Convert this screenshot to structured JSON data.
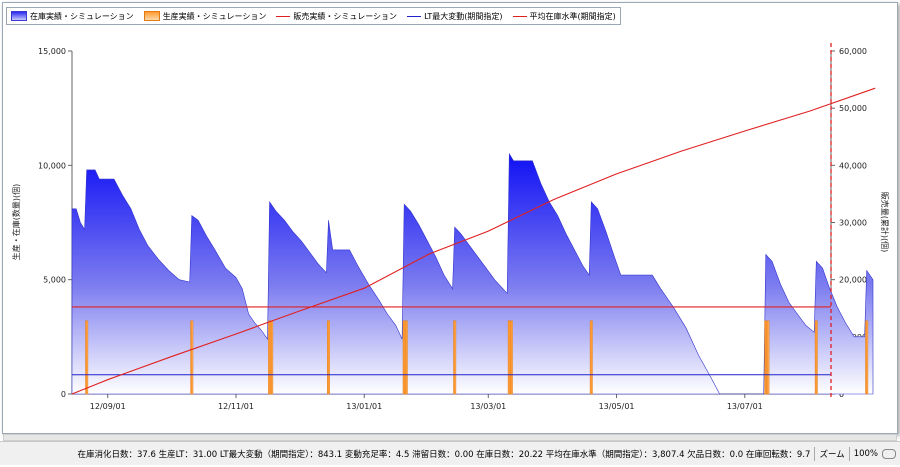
{
  "legend": {
    "items": [
      {
        "label": "在庫実績・シミュレーション",
        "color": "#3a3ae6",
        "kind": "area"
      },
      {
        "label": "生産実績・シミュレーション",
        "color": "#ff9a33",
        "kind": "bar"
      },
      {
        "label": "販売実績・シミュレーション",
        "color": "#e02020",
        "kind": "line"
      },
      {
        "label": "LT最大変動(期間指定)",
        "color": "#2222cc",
        "kind": "line"
      },
      {
        "label": "平均在庫水準(期間指定)",
        "color": "#e02020",
        "kind": "line"
      }
    ]
  },
  "status": {
    "summary": "在庫消化日数：37.6 生産LT：31.00 LT最大変動（期間指定）：843.1 変動充足率：4.5 滞留日数：0.00 在庫日数：20.22 平均在庫水準（期間指定）：3,807.4 欠品日数：0.0 在庫回転数：9.7",
    "zoom_label": "ズーム",
    "zoom_value": "100%"
  },
  "chart_data": {
    "type": "area",
    "ylabel": "生産・在庫(数量)(個)",
    "y2label": "販売量(累計)(個)",
    "ylim": [
      0,
      15000
    ],
    "y2lim": [
      0,
      60000
    ],
    "yticks": [
      "0",
      "5,000",
      "10,000",
      "15,000"
    ],
    "y2ticks": [
      "0",
      "10,000",
      "20,000",
      "30,000",
      "40,000",
      "50,000",
      "60,000"
    ],
    "xticks": [
      "12/09/01",
      "12/11/01",
      "13/01/01",
      "13/03/01",
      "13/05/01",
      "13/07/01"
    ],
    "x_start": "2012-08-15",
    "x_end": "2013-08-11",
    "inventory": [
      [
        "2012-08-15",
        8100
      ],
      [
        "2012-08-17",
        8100
      ],
      [
        "2012-08-19",
        7500
      ],
      [
        "2012-08-21",
        7200
      ],
      [
        "2012-08-22",
        9800
      ],
      [
        "2012-08-26",
        9800
      ],
      [
        "2012-08-28",
        9400
      ],
      [
        "2012-09-04",
        9400
      ],
      [
        "2012-09-08",
        8700
      ],
      [
        "2012-09-12",
        8100
      ],
      [
        "2012-09-16",
        7200
      ],
      [
        "2012-09-20",
        6500
      ],
      [
        "2012-09-25",
        5900
      ],
      [
        "2012-09-30",
        5400
      ],
      [
        "2012-10-05",
        5000
      ],
      [
        "2012-10-10",
        4900
      ],
      [
        "2012-10-11",
        7800
      ],
      [
        "2012-10-14",
        7600
      ],
      [
        "2012-10-18",
        6900
      ],
      [
        "2012-10-22",
        6300
      ],
      [
        "2012-10-27",
        5500
      ],
      [
        "2012-11-01",
        5100
      ],
      [
        "2012-11-04",
        4600
      ],
      [
        "2012-11-07",
        3500
      ],
      [
        "2012-11-10",
        3100
      ],
      [
        "2012-11-13",
        2800
      ],
      [
        "2012-11-16",
        2400
      ],
      [
        "2012-11-17",
        8400
      ],
      [
        "2012-11-20",
        8000
      ],
      [
        "2012-11-24",
        7600
      ],
      [
        "2012-11-28",
        7100
      ],
      [
        "2012-12-02",
        6700
      ],
      [
        "2012-12-06",
        6200
      ],
      [
        "2012-12-10",
        5700
      ],
      [
        "2012-12-14",
        5300
      ],
      [
        "2012-12-15",
        7600
      ],
      [
        "2012-12-17",
        6300
      ],
      [
        "2012-12-25",
        6300
      ],
      [
        "2012-12-29",
        5600
      ],
      [
        "2013-01-03",
        4800
      ],
      [
        "2013-01-08",
        4100
      ],
      [
        "2013-01-12",
        3500
      ],
      [
        "2013-01-16",
        3000
      ],
      [
        "2013-01-19",
        2400
      ],
      [
        "2013-01-20",
        8300
      ],
      [
        "2013-01-23",
        8000
      ],
      [
        "2013-01-27",
        7400
      ],
      [
        "2013-01-31",
        6700
      ],
      [
        "2013-02-04",
        6000
      ],
      [
        "2013-02-08",
        5200
      ],
      [
        "2013-02-12",
        4600
      ],
      [
        "2013-02-13",
        7300
      ],
      [
        "2013-02-16",
        7000
      ],
      [
        "2013-02-20",
        6500
      ],
      [
        "2013-02-24",
        6000
      ],
      [
        "2013-02-28",
        5500
      ],
      [
        "2013-03-04",
        5000
      ],
      [
        "2013-03-08",
        4600
      ],
      [
        "2013-03-10",
        4400
      ],
      [
        "2013-03-11",
        10500
      ],
      [
        "2013-03-13",
        10200
      ],
      [
        "2013-03-22",
        10200
      ],
      [
        "2013-03-26",
        9200
      ],
      [
        "2013-03-30",
        8400
      ],
      [
        "2013-04-03",
        7800
      ],
      [
        "2013-04-07",
        7000
      ],
      [
        "2013-04-11",
        6300
      ],
      [
        "2013-04-15",
        5600
      ],
      [
        "2013-04-18",
        5200
      ],
      [
        "2013-04-19",
        8400
      ],
      [
        "2013-04-22",
        8100
      ],
      [
        "2013-04-26",
        7100
      ],
      [
        "2013-04-30",
        6000
      ],
      [
        "2013-05-03",
        5200
      ],
      [
        "2013-05-18",
        5200
      ],
      [
        "2013-05-22",
        4600
      ],
      [
        "2013-05-28",
        3800
      ],
      [
        "2013-06-03",
        2900
      ],
      [
        "2013-06-09",
        1700
      ],
      [
        "2013-06-15",
        700
      ],
      [
        "2013-06-19",
        0
      ],
      [
        "2013-07-10",
        0
      ],
      [
        "2013-07-11",
        6100
      ],
      [
        "2013-07-14",
        5800
      ],
      [
        "2013-07-18",
        4800
      ],
      [
        "2013-07-22",
        4000
      ],
      [
        "2013-07-26",
        3500
      ],
      [
        "2013-07-30",
        3000
      ],
      [
        "2013-08-03",
        2700
      ],
      [
        "2013-08-04",
        5800
      ],
      [
        "2013-08-07",
        5500
      ],
      [
        "2013-08-10",
        4700
      ],
      [
        "2013-08-14",
        3800
      ],
      [
        "2013-08-18",
        3100
      ],
      [
        "2013-08-22",
        2500
      ],
      [
        "2013-08-27",
        2500
      ],
      [
        "2013-08-28",
        5400
      ],
      [
        "2013-08-31",
        5000
      ]
    ],
    "production": [
      [
        "2012-08-22",
        3200
      ],
      [
        "2012-10-11",
        3200
      ],
      [
        "2012-11-17",
        3200
      ],
      [
        "2012-11-18",
        3200
      ],
      [
        "2012-12-15",
        3200
      ],
      [
        "2013-01-20",
        3200
      ],
      [
        "2013-01-21",
        3200
      ],
      [
        "2013-02-13",
        3200
      ],
      [
        "2013-03-11",
        3200
      ],
      [
        "2013-03-12",
        3200
      ],
      [
        "2013-04-19",
        3200
      ],
      [
        "2013-07-11",
        3200
      ],
      [
        "2013-07-12",
        3200
      ],
      [
        "2013-08-04",
        3200
      ],
      [
        "2013-08-28",
        3200
      ]
    ],
    "sales_cumulative": [
      [
        "2012-08-15",
        0
      ],
      [
        "2012-09-01",
        2500
      ],
      [
        "2012-10-01",
        6500
      ],
      [
        "2012-11-01",
        10500
      ],
      [
        "2012-12-01",
        14500
      ],
      [
        "2013-01-01",
        18500
      ],
      [
        "2013-02-01",
        24500
      ],
      [
        "2013-03-01",
        28500
      ],
      [
        "2013-04-01",
        34000
      ],
      [
        "2013-05-01",
        38500
      ],
      [
        "2013-06-01",
        42500
      ],
      [
        "2013-07-01",
        46000
      ],
      [
        "2013-08-01",
        49500
      ],
      [
        "2013-09-01",
        53500
      ]
    ],
    "lt_max_variation": 843.1,
    "avg_inventory_level": 3807.4
  }
}
